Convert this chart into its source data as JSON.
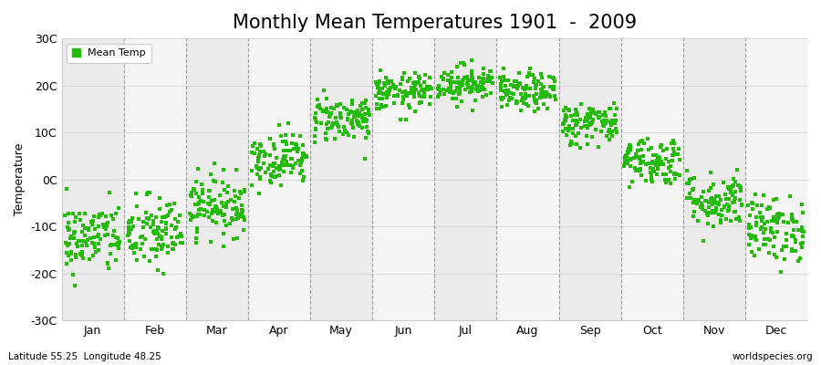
{
  "title": "Monthly Mean Temperatures 1901  -  2009",
  "ylabel": "Temperature",
  "xlabel_months": [
    "Jan",
    "Feb",
    "Mar",
    "Apr",
    "May",
    "Jun",
    "Jul",
    "Aug",
    "Sep",
    "Oct",
    "Nov",
    "Dec"
  ],
  "latitude_text": "Latitude 55.25  Longitude 48.25",
  "watermark": "worldspecies.org",
  "ylim": [
    -30,
    30
  ],
  "ytick_labels": [
    "-30C",
    "-20C",
    "-10C",
    "0C",
    "10C",
    "20C",
    "30C"
  ],
  "ytick_values": [
    -30,
    -20,
    -10,
    0,
    10,
    20,
    30
  ],
  "dot_color": "#22bb00",
  "dot_size": 8,
  "background_color": "#ffffff",
  "panel_bg_even": "#ebebeb",
  "panel_bg_odd": "#f5f5f5",
  "legend_label": "Mean Temp",
  "years": 109,
  "monthly_means": [
    -12.5,
    -11.5,
    -5.5,
    4.5,
    13.0,
    18.5,
    20.5,
    18.5,
    12.0,
    4.0,
    -4.5,
    -10.5
  ],
  "monthly_stds": [
    3.8,
    4.0,
    3.2,
    2.8,
    2.5,
    2.0,
    2.0,
    2.0,
    2.3,
    2.6,
    3.0,
    3.5
  ],
  "title_fontsize": 15,
  "axis_label_fontsize": 9,
  "tick_fontsize": 9
}
